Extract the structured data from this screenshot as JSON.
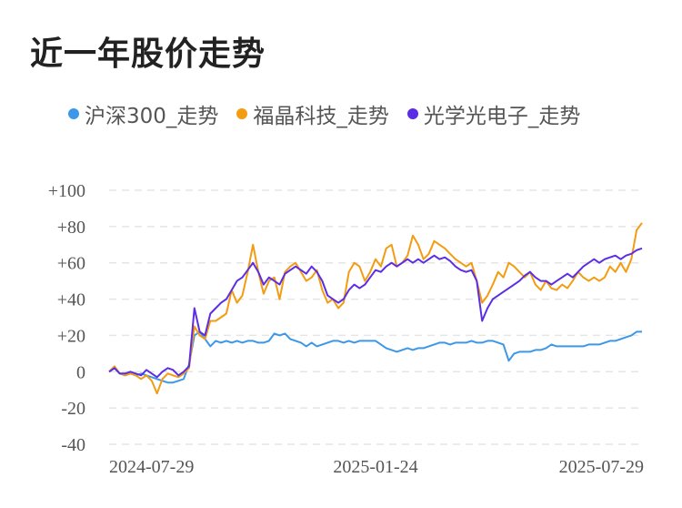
{
  "page": {
    "title": "近一年股价走势"
  },
  "colors": {
    "hs300": "#3d97e9",
    "fujing": "#f39c12",
    "optics": "#5b2ee5",
    "grid": "#e5e5e5",
    "text": "#555555"
  },
  "chart_data": {
    "type": "line",
    "title": "近一年股价走势",
    "xlabel": "",
    "ylabel": "",
    "ylim": [
      -40,
      100
    ],
    "y_ticks": [
      100,
      80,
      60,
      40,
      20,
      0,
      -20,
      -40
    ],
    "y_tick_labels": [
      "+100",
      "+80",
      "+60",
      "+40",
      "+20",
      "0",
      "-20",
      "-40"
    ],
    "x_tick_labels": [
      "2024-07-29",
      "2025-01-24",
      "2025-07-29"
    ],
    "x_range": [
      0,
      100
    ],
    "x_tick_positions": [
      0,
      50,
      100
    ],
    "grid": true,
    "legend_position": "top",
    "series": [
      {
        "name": "沪深300_走势",
        "color": "#3d97e9",
        "points": [
          [
            0,
            0
          ],
          [
            1,
            2
          ],
          [
            2,
            -1
          ],
          [
            3,
            -2
          ],
          [
            4,
            -1
          ],
          [
            5,
            -2
          ],
          [
            6,
            -1
          ],
          [
            7,
            -2
          ],
          [
            8,
            -3
          ],
          [
            9,
            -4
          ],
          [
            10,
            -5
          ],
          [
            11,
            -6
          ],
          [
            12,
            -6
          ],
          [
            13,
            -5
          ],
          [
            14,
            -4
          ],
          [
            15,
            4
          ],
          [
            16,
            20
          ],
          [
            17,
            22
          ],
          [
            18,
            18
          ],
          [
            19,
            14
          ],
          [
            20,
            17
          ],
          [
            21,
            16
          ],
          [
            22,
            17
          ],
          [
            23,
            16
          ],
          [
            24,
            17
          ],
          [
            25,
            16
          ],
          [
            26,
            17
          ],
          [
            27,
            17
          ],
          [
            28,
            16
          ],
          [
            29,
            16
          ],
          [
            30,
            17
          ],
          [
            31,
            21
          ],
          [
            32,
            20
          ],
          [
            33,
            21
          ],
          [
            34,
            18
          ],
          [
            35,
            17
          ],
          [
            36,
            16
          ],
          [
            37,
            14
          ],
          [
            38,
            16
          ],
          [
            39,
            14
          ],
          [
            40,
            15
          ],
          [
            41,
            16
          ],
          [
            42,
            17
          ],
          [
            43,
            17
          ],
          [
            44,
            16
          ],
          [
            45,
            17
          ],
          [
            46,
            16
          ],
          [
            47,
            17
          ],
          [
            48,
            17
          ],
          [
            49,
            17
          ],
          [
            50,
            17
          ],
          [
            51,
            15
          ],
          [
            52,
            13
          ],
          [
            53,
            12
          ],
          [
            54,
            11
          ],
          [
            55,
            12
          ],
          [
            56,
            13
          ],
          [
            57,
            12
          ],
          [
            58,
            13
          ],
          [
            59,
            13
          ],
          [
            60,
            14
          ],
          [
            61,
            15
          ],
          [
            62,
            16
          ],
          [
            63,
            16
          ],
          [
            64,
            15
          ],
          [
            65,
            16
          ],
          [
            66,
            16
          ],
          [
            67,
            16
          ],
          [
            68,
            17
          ],
          [
            69,
            16
          ],
          [
            70,
            16
          ],
          [
            71,
            17
          ],
          [
            72,
            17
          ],
          [
            73,
            16
          ],
          [
            74,
            15
          ],
          [
            75,
            6
          ],
          [
            76,
            10
          ],
          [
            77,
            11
          ],
          [
            78,
            11
          ],
          [
            79,
            11
          ],
          [
            80,
            12
          ],
          [
            81,
            12
          ],
          [
            82,
            13
          ],
          [
            83,
            15
          ],
          [
            84,
            14
          ],
          [
            85,
            14
          ],
          [
            86,
            14
          ],
          [
            87,
            14
          ],
          [
            88,
            14
          ],
          [
            89,
            14
          ],
          [
            90,
            15
          ],
          [
            91,
            15
          ],
          [
            92,
            15
          ],
          [
            93,
            16
          ],
          [
            94,
            17
          ],
          [
            95,
            17
          ],
          [
            96,
            18
          ],
          [
            97,
            19
          ],
          [
            98,
            20
          ],
          [
            99,
            22
          ],
          [
            100,
            22
          ]
        ]
      },
      {
        "name": "福晶科技_走势",
        "color": "#f39c12",
        "points": [
          [
            0,
            0
          ],
          [
            1,
            3
          ],
          [
            2,
            -1
          ],
          [
            3,
            -2
          ],
          [
            4,
            -1
          ],
          [
            5,
            -2
          ],
          [
            6,
            -4
          ],
          [
            7,
            -2
          ],
          [
            8,
            -5
          ],
          [
            9,
            -12
          ],
          [
            10,
            -4
          ],
          [
            11,
            -1
          ],
          [
            12,
            -2
          ],
          [
            13,
            -3
          ],
          [
            14,
            -1
          ],
          [
            15,
            2
          ],
          [
            16,
            25
          ],
          [
            17,
            20
          ],
          [
            18,
            18
          ],
          [
            19,
            28
          ],
          [
            20,
            28
          ],
          [
            21,
            30
          ],
          [
            22,
            32
          ],
          [
            23,
            45
          ],
          [
            24,
            38
          ],
          [
            25,
            42
          ],
          [
            26,
            55
          ],
          [
            27,
            70
          ],
          [
            28,
            55
          ],
          [
            29,
            43
          ],
          [
            30,
            50
          ],
          [
            31,
            52
          ],
          [
            32,
            40
          ],
          [
            33,
            55
          ],
          [
            34,
            58
          ],
          [
            35,
            60
          ],
          [
            36,
            55
          ],
          [
            37,
            50
          ],
          [
            38,
            52
          ],
          [
            39,
            56
          ],
          [
            40,
            45
          ],
          [
            41,
            38
          ],
          [
            42,
            40
          ],
          [
            43,
            35
          ],
          [
            44,
            38
          ],
          [
            45,
            55
          ],
          [
            46,
            60
          ],
          [
            47,
            58
          ],
          [
            48,
            50
          ],
          [
            49,
            55
          ],
          [
            50,
            62
          ],
          [
            51,
            58
          ],
          [
            52,
            68
          ],
          [
            53,
            70
          ],
          [
            54,
            58
          ],
          [
            55,
            60
          ],
          [
            56,
            64
          ],
          [
            57,
            75
          ],
          [
            58,
            70
          ],
          [
            59,
            62
          ],
          [
            60,
            65
          ],
          [
            61,
            72
          ],
          [
            62,
            70
          ],
          [
            63,
            68
          ],
          [
            64,
            65
          ],
          [
            65,
            62
          ],
          [
            66,
            60
          ],
          [
            67,
            58
          ],
          [
            68,
            60
          ],
          [
            69,
            50
          ],
          [
            70,
            38
          ],
          [
            71,
            42
          ],
          [
            72,
            48
          ],
          [
            73,
            55
          ],
          [
            74,
            52
          ],
          [
            75,
            60
          ],
          [
            76,
            58
          ],
          [
            77,
            55
          ],
          [
            78,
            52
          ],
          [
            79,
            55
          ],
          [
            80,
            48
          ],
          [
            81,
            45
          ],
          [
            82,
            50
          ],
          [
            83,
            46
          ],
          [
            84,
            45
          ],
          [
            85,
            48
          ],
          [
            86,
            46
          ],
          [
            87,
            50
          ],
          [
            88,
            55
          ],
          [
            89,
            52
          ],
          [
            90,
            50
          ],
          [
            91,
            52
          ],
          [
            92,
            50
          ],
          [
            93,
            52
          ],
          [
            94,
            58
          ],
          [
            95,
            55
          ],
          [
            96,
            60
          ],
          [
            97,
            55
          ],
          [
            98,
            62
          ],
          [
            99,
            78
          ],
          [
            100,
            82
          ]
        ]
      },
      {
        "name": "光学光电子_走势",
        "color": "#5b2ee5",
        "points": [
          [
            0,
            0
          ],
          [
            1,
            2
          ],
          [
            2,
            -1
          ],
          [
            3,
            -1
          ],
          [
            4,
            0
          ],
          [
            5,
            -1
          ],
          [
            6,
            -2
          ],
          [
            7,
            1
          ],
          [
            8,
            -1
          ],
          [
            9,
            -3
          ],
          [
            10,
            0
          ],
          [
            11,
            2
          ],
          [
            12,
            1
          ],
          [
            13,
            -2
          ],
          [
            14,
            0
          ],
          [
            15,
            3
          ],
          [
            16,
            35
          ],
          [
            17,
            22
          ],
          [
            18,
            20
          ],
          [
            19,
            32
          ],
          [
            20,
            35
          ],
          [
            21,
            38
          ],
          [
            22,
            40
          ],
          [
            23,
            45
          ],
          [
            24,
            50
          ],
          [
            25,
            52
          ],
          [
            26,
            56
          ],
          [
            27,
            60
          ],
          [
            28,
            55
          ],
          [
            29,
            48
          ],
          [
            30,
            52
          ],
          [
            31,
            50
          ],
          [
            32,
            48
          ],
          [
            33,
            54
          ],
          [
            34,
            56
          ],
          [
            35,
            58
          ],
          [
            36,
            56
          ],
          [
            37,
            54
          ],
          [
            38,
            58
          ],
          [
            39,
            55
          ],
          [
            40,
            50
          ],
          [
            41,
            42
          ],
          [
            42,
            40
          ],
          [
            43,
            38
          ],
          [
            44,
            40
          ],
          [
            45,
            45
          ],
          [
            46,
            48
          ],
          [
            47,
            46
          ],
          [
            48,
            48
          ],
          [
            49,
            52
          ],
          [
            50,
            56
          ],
          [
            51,
            55
          ],
          [
            52,
            58
          ],
          [
            53,
            60
          ],
          [
            54,
            58
          ],
          [
            55,
            60
          ],
          [
            56,
            62
          ],
          [
            57,
            60
          ],
          [
            58,
            62
          ],
          [
            59,
            60
          ],
          [
            60,
            62
          ],
          [
            61,
            64
          ],
          [
            62,
            62
          ],
          [
            63,
            63
          ],
          [
            64,
            61
          ],
          [
            65,
            58
          ],
          [
            66,
            56
          ],
          [
            67,
            55
          ],
          [
            68,
            56
          ],
          [
            69,
            50
          ],
          [
            70,
            28
          ],
          [
            71,
            35
          ],
          [
            72,
            40
          ],
          [
            73,
            42
          ],
          [
            74,
            44
          ],
          [
            75,
            46
          ],
          [
            76,
            48
          ],
          [
            77,
            50
          ],
          [
            78,
            53
          ],
          [
            79,
            55
          ],
          [
            80,
            52
          ],
          [
            81,
            50
          ],
          [
            82,
            50
          ],
          [
            83,
            48
          ],
          [
            84,
            50
          ],
          [
            85,
            52
          ],
          [
            86,
            54
          ],
          [
            87,
            52
          ],
          [
            88,
            55
          ],
          [
            89,
            58
          ],
          [
            90,
            60
          ],
          [
            91,
            62
          ],
          [
            92,
            60
          ],
          [
            93,
            62
          ],
          [
            94,
            63
          ],
          [
            95,
            64
          ],
          [
            96,
            62
          ],
          [
            97,
            64
          ],
          [
            98,
            65
          ],
          [
            99,
            67
          ],
          [
            100,
            68
          ]
        ]
      }
    ]
  }
}
